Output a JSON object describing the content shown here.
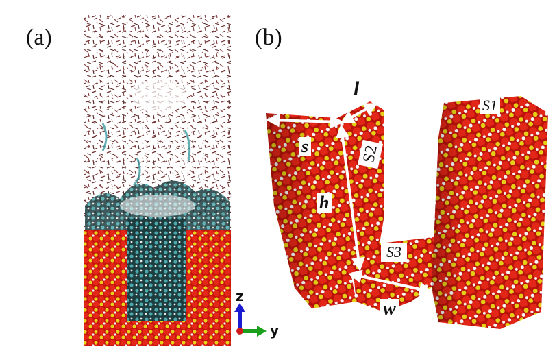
{
  "panels": {
    "a": {
      "label": "(a)"
    },
    "b": {
      "label": "(b)"
    }
  },
  "dimensions": {
    "l": "l",
    "s": "s",
    "h": "h",
    "w": "w"
  },
  "surfaces": {
    "s1": "S1",
    "s2": "S2",
    "s3": "S3"
  },
  "axes": {
    "z": "z",
    "y": "y"
  },
  "colors": {
    "oxygen": "#d91e12",
    "silicon": "#e8d21a",
    "hydrogen": "#f2f2f2",
    "water": "#3c9aa0",
    "gas": "#7a3a3a",
    "arrow": "#ffffff",
    "z_axis": "#1a1ad0",
    "y_axis": "#1aa01a",
    "origin": "#d01a1a"
  }
}
